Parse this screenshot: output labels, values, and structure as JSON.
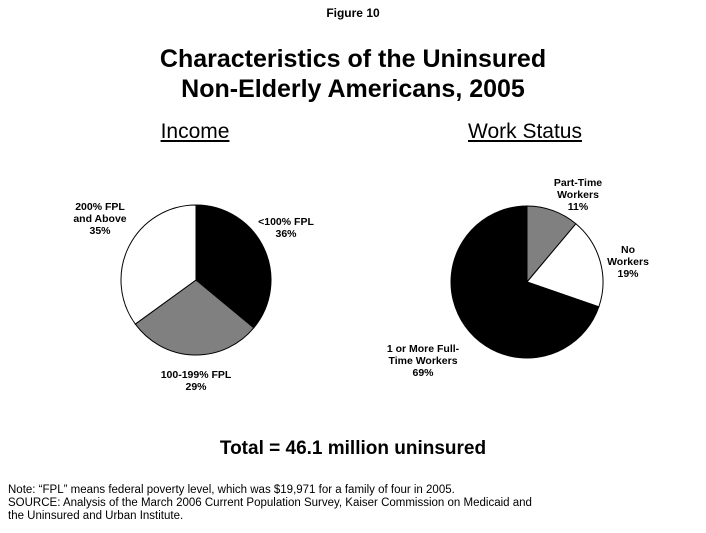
{
  "figure_label": "Figure 10",
  "title_line1": "Characteristics of the Uninsured",
  "title_line2": "Non-Elderly Americans, 2005",
  "total_text": "Total = 46.1 million uninsured",
  "notes": {
    "line1": "Note: “FPL” means federal poverty level, which was $19,971 for a family of four in 2005.",
    "line2": "SOURCE: Analysis of the March 2006 Current Population Survey, Kaiser Commission on Medicaid and",
    "line3": "the Uninsured and Urban Institute."
  },
  "chart_data": [
    {
      "type": "pie",
      "title": "Income",
      "slices": [
        {
          "label": [
            "<100% FPL",
            "36%"
          ],
          "value": 36,
          "color": "#000000"
        },
        {
          "label": [
            "100-199% FPL",
            "29%"
          ],
          "value": 29,
          "color": "#808080"
        },
        {
          "label": [
            "200% FPL",
            "and Above",
            "35%"
          ],
          "value": 35,
          "color": "#ffffff"
        }
      ]
    },
    {
      "type": "pie",
      "title": "Work Status",
      "slices": [
        {
          "label": [
            "Part-Time",
            "Workers",
            "11%"
          ],
          "value": 11,
          "color": "#808080"
        },
        {
          "label": [
            "No",
            "Workers",
            "19%"
          ],
          "value": 19,
          "color": "#ffffff"
        },
        {
          "label": [
            "1 or More Full-",
            "Time Workers",
            "69%"
          ],
          "value": 69,
          "color": "#000000"
        }
      ]
    }
  ]
}
